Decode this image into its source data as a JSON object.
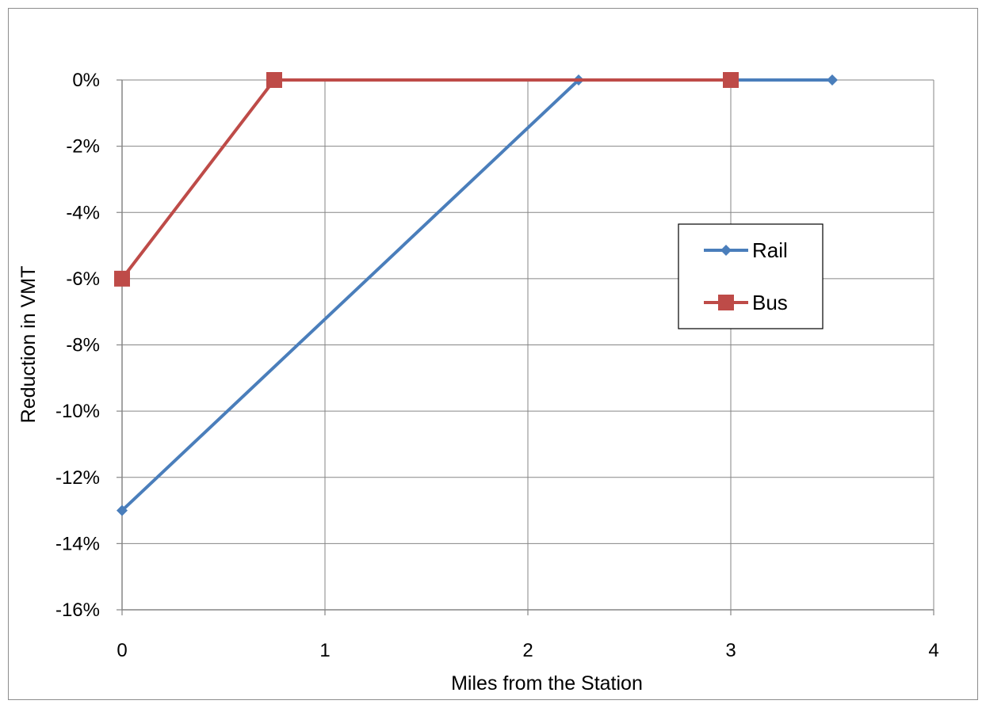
{
  "chart_data": {
    "type": "line",
    "title": "",
    "xlabel": "Miles from the Station",
    "ylabel": "Reduction in VMT",
    "xlim": [
      0,
      4
    ],
    "ylim": [
      -16,
      0
    ],
    "x_ticks": [
      0,
      1,
      2,
      3,
      4
    ],
    "x_tick_labels": [
      "0",
      "1",
      "2",
      "3",
      "4"
    ],
    "y_ticks": [
      0,
      -2,
      -4,
      -6,
      -8,
      -10,
      -12,
      -14,
      -16
    ],
    "y_tick_labels": [
      "0%",
      "-2%",
      "-4%",
      "-6%",
      "-8%",
      "-10%",
      "-12%",
      "-14%",
      "-16%"
    ],
    "grid": true,
    "legend_position": "right",
    "series": [
      {
        "name": "Rail",
        "color": "#4a7ebb",
        "marker": "diamond",
        "x": [
          0,
          2.25,
          3.5
        ],
        "y": [
          -13,
          0,
          0
        ]
      },
      {
        "name": "Bus",
        "color": "#be4b48",
        "marker": "square",
        "x": [
          0,
          0.75,
          3
        ],
        "y": [
          -6,
          0,
          0
        ]
      }
    ]
  }
}
